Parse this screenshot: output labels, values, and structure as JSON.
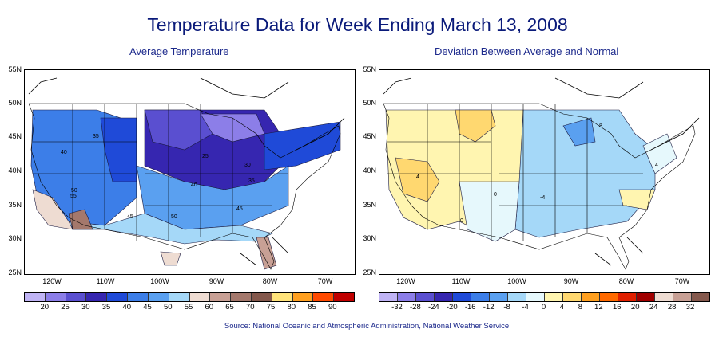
{
  "title": "Temperature Data for Week Ending March 13, 2008",
  "panels": {
    "left": {
      "subtitle": "Average Temperature",
      "legend_labels": [
        "20",
        "25",
        "30",
        "35",
        "40",
        "45",
        "50",
        "55",
        "60",
        "65",
        "70",
        "75",
        "80",
        "85",
        "90"
      ],
      "legend_colors": [
        "#c0b4f5",
        "#8c7ee8",
        "#5a4fd0",
        "#3626b0",
        "#1f4ad8",
        "#3c7ee8",
        "#5aa0f0",
        "#a5d8f8",
        "#eedcd2",
        "#c8a095",
        "#a4786c",
        "#84584c",
        "#ffe37a",
        "#ffa020",
        "#ff4a00",
        "#c00000"
      ],
      "contour_labels": [
        "35",
        "40",
        "25",
        "30",
        "40",
        "35",
        "50",
        "55",
        "45",
        "50",
        "45"
      ]
    },
    "right": {
      "subtitle": "Deviation Between Average and Normal",
      "legend_labels": [
        "-32",
        "-28",
        "-24",
        "-20",
        "-16",
        "-12",
        "-8",
        "-4",
        "0",
        "4",
        "8",
        "12",
        "16",
        "20",
        "24",
        "28",
        "32"
      ],
      "legend_colors": [
        "#c0b4f5",
        "#8c7ee8",
        "#5a4fd0",
        "#3626b0",
        "#1f4ad8",
        "#3c7ee8",
        "#5aa0f0",
        "#a5d8f8",
        "#e6f8fc",
        "#fff5b0",
        "#ffd870",
        "#ffa020",
        "#ff6a00",
        "#e02000",
        "#a00000",
        "#eedcd2",
        "#c8a095",
        "#84584c"
      ],
      "contour_labels": [
        "8",
        "4",
        "0",
        "0",
        "-4",
        "4"
      ]
    }
  },
  "axes": {
    "latitude": [
      "55N",
      "50N",
      "45N",
      "40N",
      "35N",
      "30N",
      "25N"
    ],
    "longitude": [
      "120W",
      "110W",
      "100W",
      "90W",
      "80W",
      "70W"
    ]
  },
  "source": "Source:  National Oceanic and Atmospheric Administration, National Weather Service"
}
